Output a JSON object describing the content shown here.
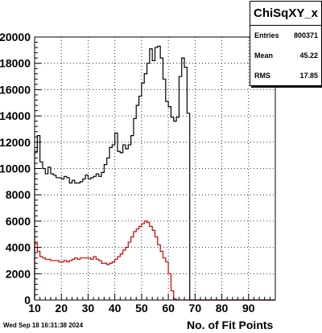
{
  "chart_data": {
    "type": "histogram",
    "title": "ChiSqXY_x",
    "xlabel": "No. of Fit Points",
    "ylabel": "",
    "xlim": [
      10,
      100
    ],
    "ylim": [
      0,
      20000
    ],
    "bin_width": 1,
    "x_ticks": [
      "10",
      "20",
      "30",
      "40",
      "50",
      "60",
      "70",
      "80",
      "90"
    ],
    "y_ticks": [
      "0",
      "2000",
      "4000",
      "6000",
      "8000",
      "10000",
      "12000",
      "14000",
      "16000",
      "18000",
      "20000"
    ],
    "grid": true,
    "series": [
      {
        "color": "#000000",
        "x": [
          10,
          11,
          12,
          13,
          14,
          15,
          16,
          17,
          18,
          19,
          20,
          21,
          22,
          23,
          24,
          25,
          26,
          27,
          28,
          29,
          30,
          31,
          32,
          33,
          34,
          35,
          36,
          37,
          38,
          39,
          40,
          41,
          42,
          43,
          44,
          45,
          46,
          47,
          48,
          49,
          50,
          51,
          52,
          53,
          54,
          55,
          56,
          57,
          58,
          59,
          60,
          61,
          62,
          63,
          64,
          65,
          66,
          67,
          68,
          69,
          70,
          71,
          72,
          73,
          74,
          75,
          76,
          77,
          78,
          79,
          80,
          81,
          82,
          83,
          84,
          85,
          86,
          87,
          88,
          89,
          90,
          91,
          92,
          93,
          94,
          95,
          96,
          97,
          98,
          99
        ],
        "values": [
          11300,
          12500,
          10500,
          10000,
          9600,
          10100,
          9600,
          9500,
          9300,
          9300,
          9200,
          9400,
          9300,
          8900,
          9100,
          8900,
          8900,
          9000,
          9200,
          9500,
          9200,
          9300,
          9400,
          9600,
          9400,
          9700,
          10300,
          10800,
          11600,
          11800,
          12700,
          11300,
          11200,
          11800,
          11500,
          11800,
          12500,
          13800,
          14800,
          15500,
          16500,
          17200,
          18000,
          19100,
          18200,
          19200,
          19300,
          18400,
          16800,
          15100,
          14700,
          13900,
          13600,
          13900,
          17000,
          18400,
          17700,
          14200,
          0,
          0,
          0,
          0,
          0,
          0,
          0,
          0,
          0,
          0,
          0,
          0,
          0,
          0,
          0,
          0,
          0,
          0,
          0,
          0,
          0,
          0,
          0,
          0,
          0,
          0,
          0,
          0,
          0,
          0,
          0,
          0
        ]
      },
      {
        "color": "#cc0000",
        "x": [
          10,
          11,
          12,
          13,
          14,
          15,
          16,
          17,
          18,
          19,
          20,
          21,
          22,
          23,
          24,
          25,
          26,
          27,
          28,
          29,
          30,
          31,
          32,
          33,
          34,
          35,
          36,
          37,
          38,
          39,
          40,
          41,
          42,
          43,
          44,
          45,
          46,
          47,
          48,
          49,
          50,
          51,
          52,
          53,
          54,
          55,
          56,
          57,
          58,
          59,
          60,
          61,
          62,
          63,
          64,
          65,
          66,
          67,
          68,
          69,
          70,
          71,
          72,
          73,
          74,
          75,
          76,
          77,
          78,
          79,
          80,
          81,
          82,
          83,
          84,
          85,
          86,
          87,
          88,
          89,
          90,
          91,
          92,
          93,
          94,
          95,
          96,
          97,
          98,
          99
        ],
        "values": [
          4300,
          3700,
          3300,
          3200,
          3100,
          3100,
          3000,
          3000,
          3000,
          2900,
          2900,
          3000,
          2900,
          3000,
          3100,
          3200,
          3100,
          3200,
          3200,
          3200,
          3200,
          3100,
          3300,
          3100,
          3000,
          2800,
          2800,
          2700,
          2800,
          2900,
          3100,
          3300,
          3500,
          3800,
          4000,
          4400,
          4800,
          5200,
          5400,
          5600,
          5800,
          6000,
          5900,
          5600,
          5300,
          4800,
          4200,
          3700,
          3200,
          2900,
          2000,
          700,
          80,
          0,
          0,
          0,
          0,
          0,
          0,
          0,
          0,
          0,
          0,
          0,
          0,
          0,
          0,
          0,
          0,
          0,
          0,
          0,
          0,
          0,
          0,
          0,
          0,
          0,
          0,
          0,
          0,
          0,
          0,
          0,
          0,
          0,
          0,
          0,
          0,
          0
        ]
      }
    ],
    "stats": [
      {
        "label": "Entries",
        "value": "800371"
      },
      {
        "label": "Mean",
        "value": "45.22"
      },
      {
        "label": "RMS",
        "value": "17.85"
      }
    ]
  },
  "footer": {
    "date": "Wed Sep 18 16:31:38 2024"
  }
}
